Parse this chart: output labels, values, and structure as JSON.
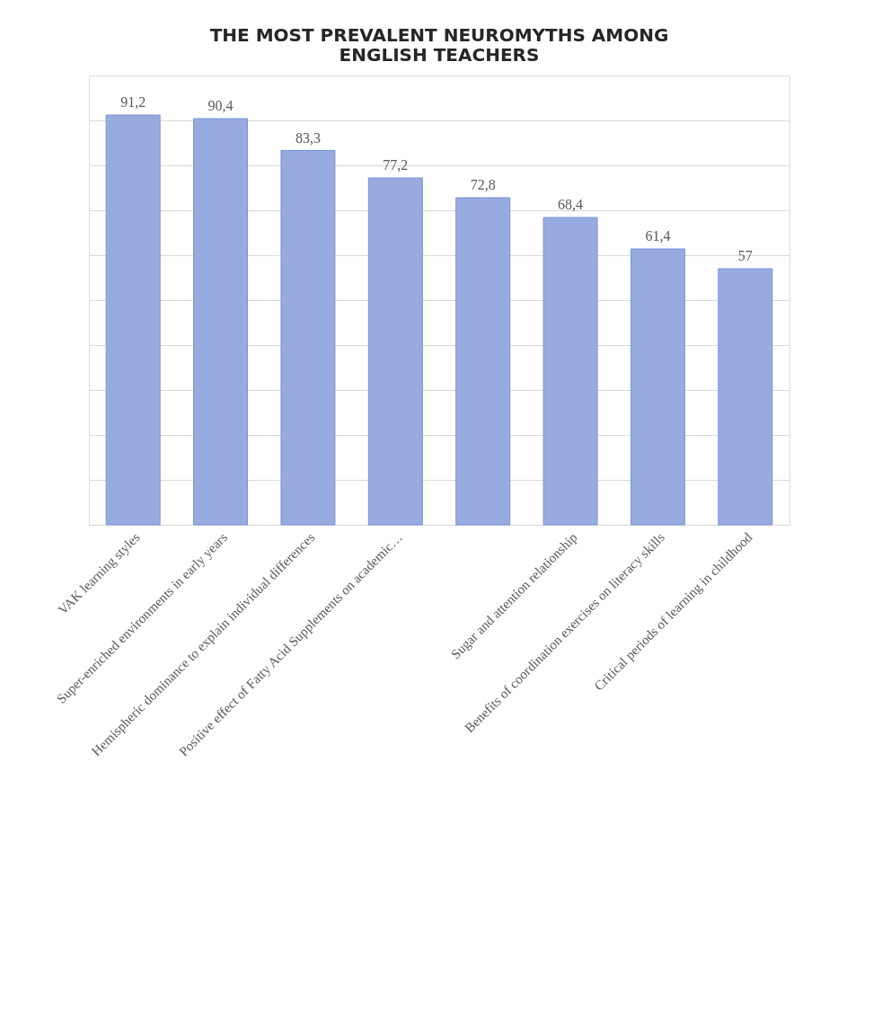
{
  "chart_data": {
    "type": "bar",
    "title": "THE MOST PREVALENT NEUROMYTHS AMONG ENGLISH TEACHERS",
    "categories": [
      "VAK learning styles",
      "Super-enriched environments in early years",
      "Hemispheric dominance to explain individual differences",
      "Positive effect of Fatty Acid Supplements on academic…",
      null,
      "Sugar and attention relationship",
      "Benefits of coordination exercises on literacy skills",
      "Critical periods of learning in childhood"
    ],
    "values": [
      91.2,
      90.4,
      83.3,
      77.2,
      72.8,
      68.4,
      61.4,
      57
    ],
    "value_labels": [
      "91,2",
      "90,4",
      "83,3",
      "77,2",
      "72,8",
      "68,4",
      "61,4",
      "57"
    ],
    "color": "#98abdf",
    "ylim": [
      0,
      100
    ],
    "yticks": [
      {
        "value": 0,
        "label": null
      },
      {
        "value": 10,
        "label": null
      },
      {
        "value": 20,
        "label": null
      },
      {
        "value": 30,
        "label": null
      },
      {
        "value": 40,
        "label": null
      },
      {
        "value": 50,
        "label": null
      },
      {
        "value": 60,
        "label": null
      },
      {
        "value": 70,
        "label": null
      },
      {
        "value": 80,
        "label": null
      },
      {
        "value": 90,
        "label": null
      },
      {
        "value": 100,
        "label": null
      }
    ],
    "grid": "y",
    "tick_labels": "x"
  }
}
